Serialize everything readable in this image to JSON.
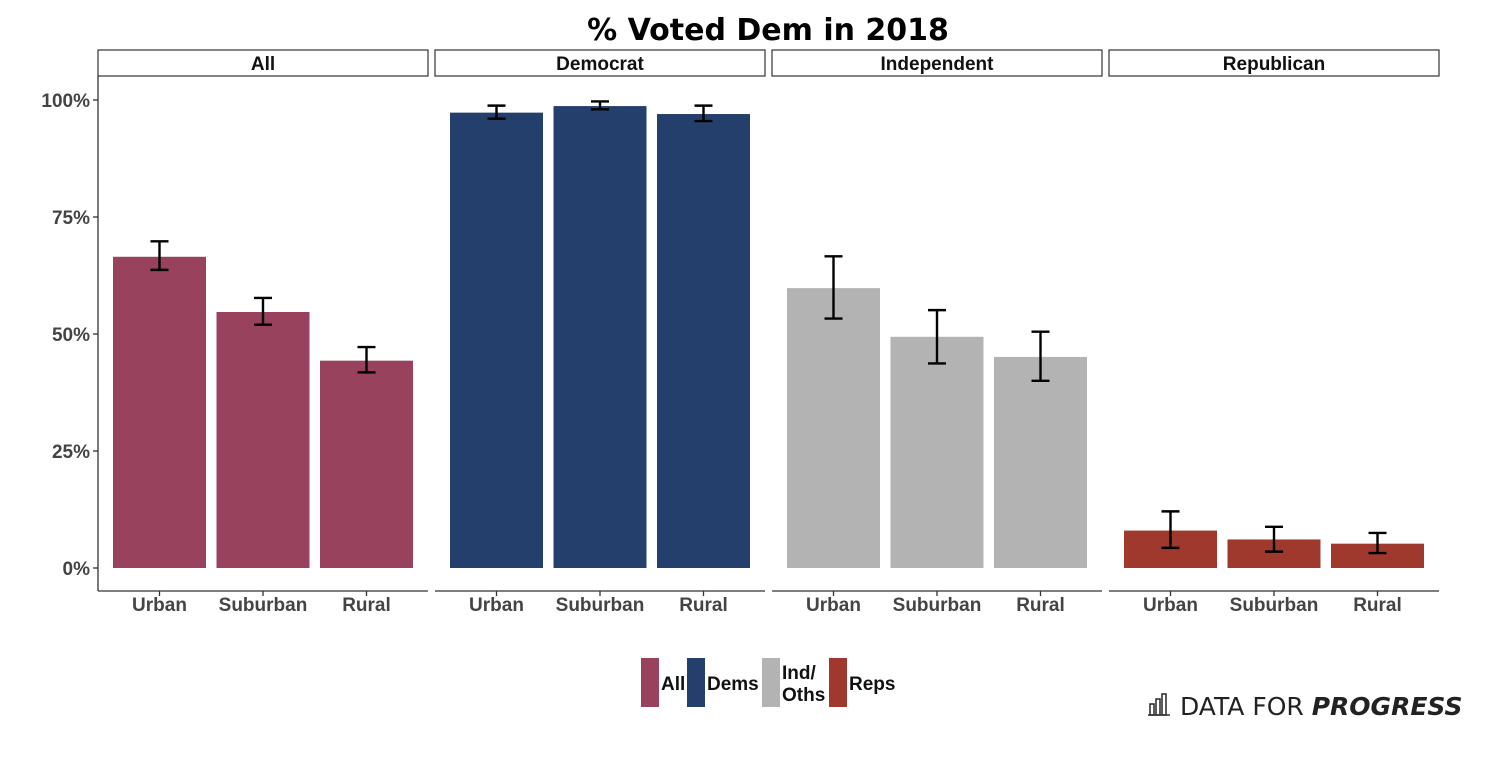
{
  "chart_data": {
    "type": "bar",
    "title": "% Voted Dem in 2018",
    "xlabel": "",
    "ylabel": "",
    "ylim": [
      -0.05,
      1.05
    ],
    "y_ticks": [
      0,
      0.25,
      0.5,
      0.75,
      1.0
    ],
    "y_tick_labels": [
      "0%",
      "25%",
      "50%",
      "75%",
      "100%"
    ],
    "categories": [
      "Urban",
      "Suburban",
      "Rural"
    ],
    "panels": [
      {
        "name": "All",
        "legend_key": "All",
        "color": "#98425E",
        "values": [
          0.665,
          0.547,
          0.443
        ],
        "error_low": [
          0.637,
          0.52,
          0.418
        ],
        "error_high": [
          0.698,
          0.577,
          0.472
        ]
      },
      {
        "name": "Democrat",
        "legend_key": "Dems",
        "color": "#243F6B",
        "values": [
          0.973,
          0.987,
          0.97
        ],
        "error_low": [
          0.96,
          0.98,
          0.955
        ],
        "error_high": [
          0.988,
          0.997,
          0.988
        ]
      },
      {
        "name": "Independent",
        "legend_key": "Ind/ Oths",
        "color": "#B3B3B3",
        "values": [
          0.598,
          0.494,
          0.451
        ],
        "error_low": [
          0.533,
          0.437,
          0.4
        ],
        "error_high": [
          0.666,
          0.551,
          0.505
        ]
      },
      {
        "name": "Republican",
        "legend_key": "Reps",
        "color": "#A0392D",
        "values": [
          0.08,
          0.061,
          0.052
        ],
        "error_low": [
          0.043,
          0.035,
          0.032
        ],
        "error_high": [
          0.121,
          0.088,
          0.075
        ]
      }
    ],
    "legend": {
      "position": "bottom",
      "entries": [
        {
          "lines": [
            "All"
          ],
          "color": "#98425E"
        },
        {
          "lines": [
            "Dems"
          ],
          "color": "#243F6B"
        },
        {
          "lines": [
            "Ind/",
            "Oths"
          ],
          "color": "#B3B3B3"
        },
        {
          "lines": [
            "Reps"
          ],
          "color": "#A0392D"
        }
      ]
    }
  },
  "branding": {
    "prefix": "DATA FOR ",
    "emphasis": "PROGRESS"
  }
}
